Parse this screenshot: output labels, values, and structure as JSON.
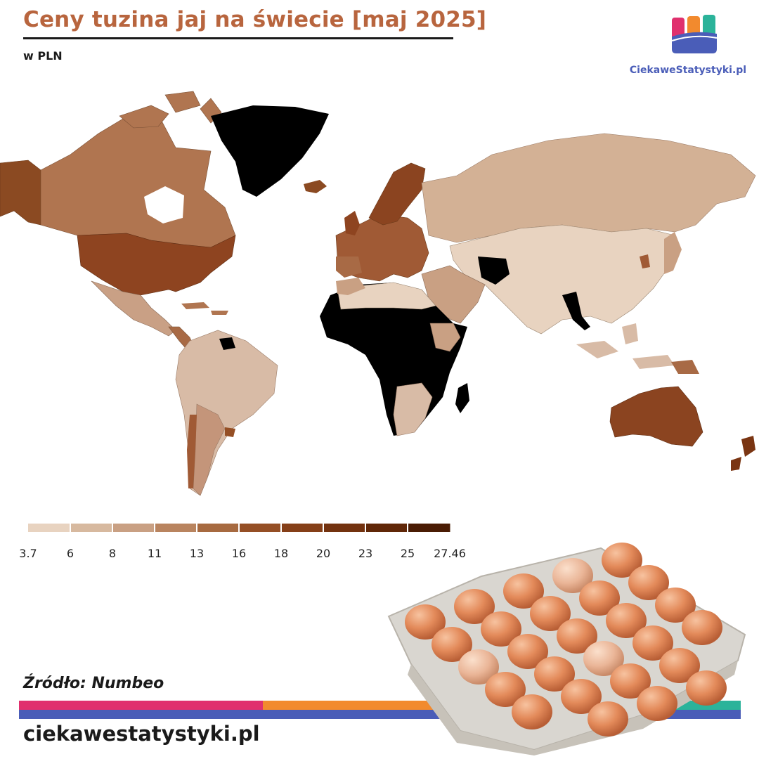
{
  "header": {
    "title": "Ceny tuzina jaj na świecie [maj 2025]",
    "subtitle": "w PLN"
  },
  "logo": {
    "text": "CiekaweStatystyki.pl",
    "colors": [
      "#e0306e",
      "#f28a2e",
      "#2bb39a",
      "#4a5db8"
    ]
  },
  "map": {
    "no_data_color": "#000000",
    "regions": [
      {
        "name": "greenland-region",
        "fill": "#000000"
      },
      {
        "name": "alaska-region",
        "fill": "#8b4a22"
      },
      {
        "name": "canada-region",
        "fill": "#b07550"
      },
      {
        "name": "usa-region",
        "fill": "#8e4420"
      },
      {
        "name": "mexico-region",
        "fill": "#c9a085"
      },
      {
        "name": "south-america-region",
        "fill": "#d8bba6"
      },
      {
        "name": "europe-region",
        "fill": "#a05a35"
      },
      {
        "name": "russia-region",
        "fill": "#d3b195"
      },
      {
        "name": "asia-region",
        "fill": "#e8d3c0"
      },
      {
        "name": "africa-region",
        "fill": "#000000"
      },
      {
        "name": "australia-region",
        "fill": "#8b4420"
      },
      {
        "name": "new-zealand-region",
        "fill": "#7a3512"
      }
    ]
  },
  "legend": {
    "labels": [
      "3.7",
      "6",
      "8",
      "11",
      "13",
      "16",
      "18",
      "20",
      "23",
      "25",
      "27.46"
    ],
    "colors": [
      "#e8d3c0",
      "#d7b99f",
      "#c9a083",
      "#b9845f",
      "#a76a40",
      "#954f25",
      "#853f18",
      "#73320f",
      "#602708",
      "#4a1c04"
    ]
  },
  "footer": {
    "source": "Źródło: Numbeo",
    "site": "ciekawestatystyki.pl",
    "stripe_colors": [
      "#e0306e",
      "#f28a2e",
      "#2bb39a",
      "#4a5db8"
    ]
  }
}
